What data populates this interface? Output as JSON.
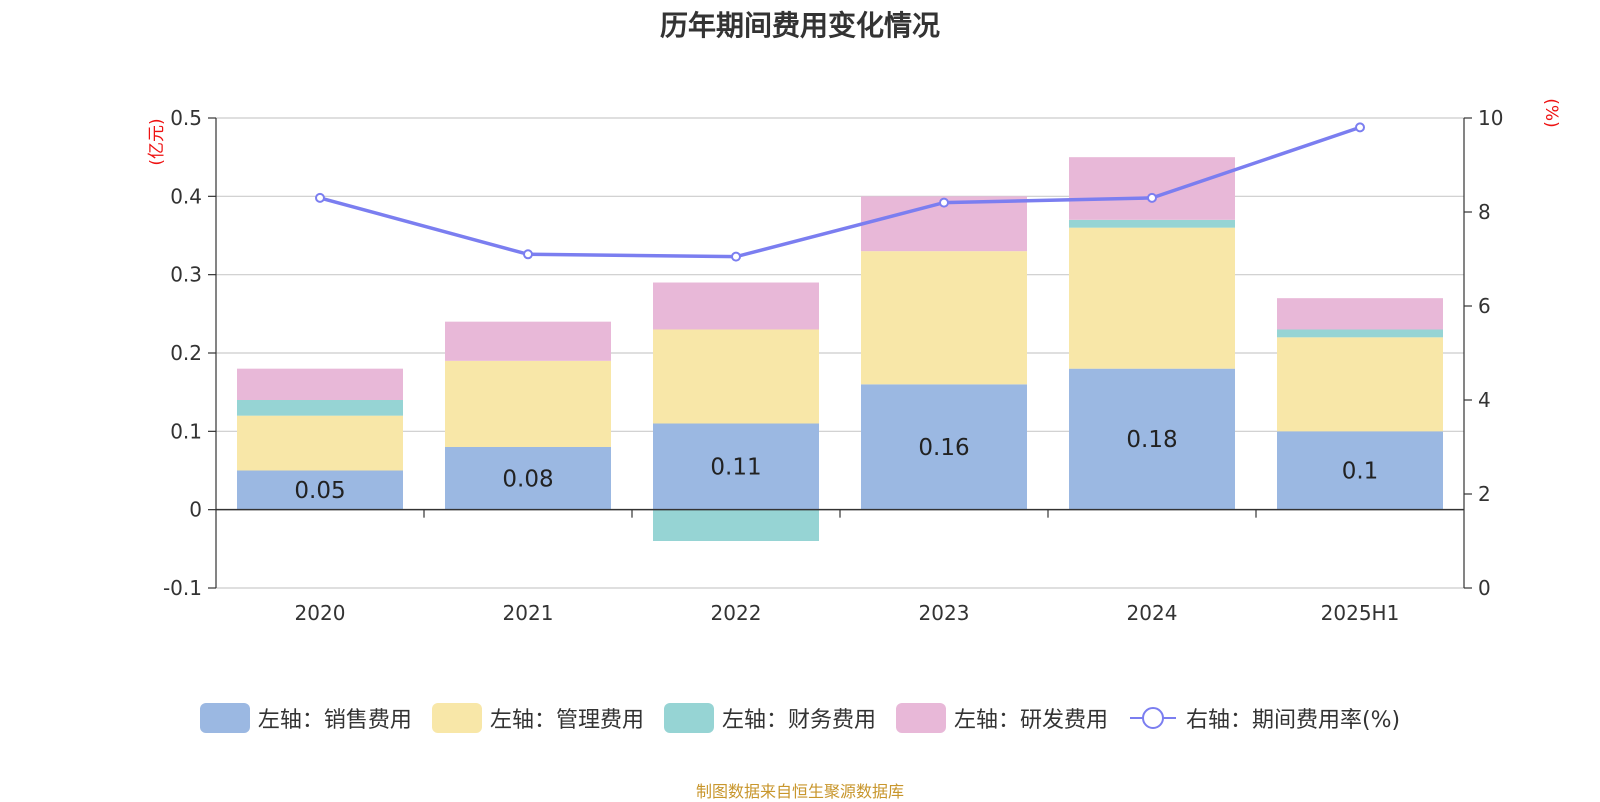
{
  "chart_data": {
    "type": "bar",
    "title": "历年期间费用变化情况",
    "categories": [
      "2020",
      "2021",
      "2022",
      "2023",
      "2024",
      "2025H1"
    ],
    "left_axis": {
      "unit": "(亿元)",
      "ylim": [
        -0.1,
        0.5
      ],
      "ticks": [
        "0.5",
        "0.4",
        "0.3",
        "0.2",
        "0.1",
        "0",
        "-0.1"
      ]
    },
    "right_axis": {
      "unit": "(%)",
      "ylim": [
        0,
        10
      ],
      "ticks": [
        "10",
        "8",
        "6",
        "4",
        "2",
        "0"
      ]
    },
    "grid": true,
    "legend_position": "bottom",
    "series": [
      {
        "name": "左轴：销售费用",
        "axis": "left",
        "stack": true,
        "color": "#9bb8e2",
        "values": [
          0.05,
          0.08,
          0.11,
          0.16,
          0.18,
          0.1
        ],
        "labels": [
          "0.05",
          "0.08",
          "0.11",
          "0.16",
          "0.18",
          "0.1"
        ]
      },
      {
        "name": "左轴：管理费用",
        "axis": "left",
        "stack": true,
        "color": "#f8e7a8",
        "values": [
          0.07,
          0.11,
          0.12,
          0.17,
          0.18,
          0.12
        ]
      },
      {
        "name": "左轴：财务费用",
        "axis": "left",
        "stack": true,
        "color": "#96d4d4",
        "values": [
          0.02,
          0.0,
          -0.04,
          0.0,
          0.01,
          0.01
        ]
      },
      {
        "name": "左轴：研发费用",
        "axis": "left",
        "stack": true,
        "color": "#e8b8d8",
        "values": [
          0.04,
          0.05,
          0.06,
          0.07,
          0.08,
          0.04
        ]
      },
      {
        "name": "右轴：期间费用率(%)",
        "axis": "right",
        "type": "line",
        "color": "#7b7ef0",
        "values": [
          8.3,
          7.1,
          7.05,
          8.2,
          8.3,
          9.8
        ]
      }
    ]
  },
  "footer": {
    "source_note": "制图数据来自恒生聚源数据库"
  }
}
